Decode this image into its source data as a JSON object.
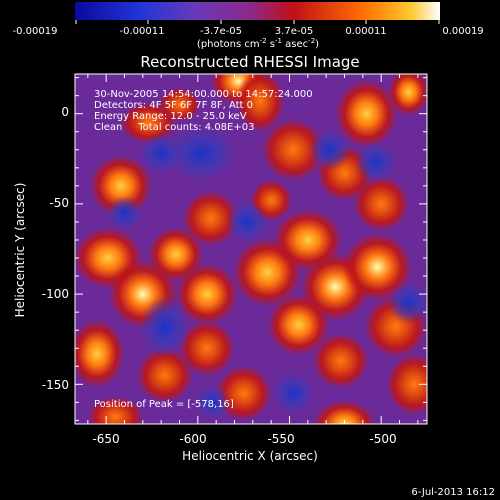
{
  "colorbar": {
    "tick_labels": [
      "-0.00019",
      "-0.00011",
      "-3.7e-05",
      "3.7e-05",
      "0.00011",
      "0.00019"
    ],
    "unit_main": "(photons cm",
    "unit_exp1": "-2",
    "unit_mid": " s",
    "unit_exp2": "-1",
    "unit_tail": " asec",
    "unit_exp3": "-2",
    "unit_close": ")"
  },
  "title": "Reconstructed RHESSI Image",
  "annotations": {
    "time_range": "30-Nov-2005 14:54:00.000 to 14:57:24.000",
    "detectors": "Detectors: 4F 5F 6F 7F 8F, Att 0",
    "energy": "Energy Range: 12.0 - 25.0 keV",
    "method": "Clean     Total counts: 4.08E+03",
    "peak": "Position of Peak = [-578,16]"
  },
  "axes": {
    "xlabel": "Heliocentric X (arcsec)",
    "ylabel": "Heliocentric Y (arcsec)",
    "x_ticks": [
      "-650",
      "-600",
      "-550",
      "-500"
    ],
    "y_ticks": [
      "0",
      "-50",
      "-100",
      "-150"
    ]
  },
  "footer_date": "6-Jul-2013 16:12",
  "colors": {
    "map_background": "#6a2a9a",
    "negative": "#1a33c8",
    "positive_low": "#c01515",
    "positive_mid": "#ff7a10",
    "positive_high": "#ffffaa"
  },
  "chart_data": {
    "type": "heatmap",
    "title": "Reconstructed RHESSI Image",
    "xlabel": "Heliocentric X (arcsec)",
    "ylabel": "Heliocentric Y (arcsec)",
    "xlim": [
      -667,
      -475
    ],
    "ylim": [
      -172,
      22
    ],
    "colorbar_range": [
      -0.00019,
      0.00019
    ],
    "peak_position": [
      -578,
      16
    ],
    "blobs": [
      {
        "x": -578,
        "y": 18,
        "sx": 8,
        "sy": 7,
        "v": 1.0
      },
      {
        "x": -566,
        "y": 7,
        "sx": 7,
        "sy": 9,
        "v": 0.6
      },
      {
        "x": -508,
        "y": 0,
        "sx": 9,
        "sy": 10,
        "v": 0.75
      },
      {
        "x": -485,
        "y": 12,
        "sx": 6,
        "sy": 7,
        "v": 0.65
      },
      {
        "x": -548,
        "y": -20,
        "sx": 9,
        "sy": 9,
        "v": 0.45
      },
      {
        "x": -520,
        "y": -33,
        "sx": 8,
        "sy": 8,
        "v": 0.5
      },
      {
        "x": -627,
        "y": -5,
        "sx": 8,
        "sy": 6,
        "v": 0.55
      },
      {
        "x": -610,
        "y": 5,
        "sx": 6,
        "sy": 5,
        "v": 0.45
      },
      {
        "x": -642,
        "y": -40,
        "sx": 9,
        "sy": 9,
        "v": 0.7
      },
      {
        "x": -593,
        "y": -58,
        "sx": 8,
        "sy": 8,
        "v": 0.5
      },
      {
        "x": -649,
        "y": -80,
        "sx": 10,
        "sy": 9,
        "v": 0.75
      },
      {
        "x": -630,
        "y": -100,
        "sx": 10,
        "sy": 10,
        "v": 0.85
      },
      {
        "x": -612,
        "y": -78,
        "sx": 8,
        "sy": 8,
        "v": 0.65
      },
      {
        "x": -595,
        "y": -100,
        "sx": 9,
        "sy": 9,
        "v": 0.7
      },
      {
        "x": -562,
        "y": -88,
        "sx": 10,
        "sy": 10,
        "v": 0.8
      },
      {
        "x": -540,
        "y": -70,
        "sx": 10,
        "sy": 9,
        "v": 0.75
      },
      {
        "x": -525,
        "y": -96,
        "sx": 10,
        "sy": 10,
        "v": 0.95
      },
      {
        "x": -502,
        "y": -85,
        "sx": 10,
        "sy": 10,
        "v": 0.95
      },
      {
        "x": -492,
        "y": -118,
        "sx": 9,
        "sy": 9,
        "v": 0.6
      },
      {
        "x": -482,
        "y": -150,
        "sx": 8,
        "sy": 9,
        "v": 0.55
      },
      {
        "x": -545,
        "y": -117,
        "sx": 9,
        "sy": 9,
        "v": 0.75
      },
      {
        "x": -522,
        "y": -137,
        "sx": 8,
        "sy": 8,
        "v": 0.55
      },
      {
        "x": -655,
        "y": -133,
        "sx": 8,
        "sy": 10,
        "v": 0.65
      },
      {
        "x": -618,
        "y": -145,
        "sx": 8,
        "sy": 8,
        "v": 0.55
      },
      {
        "x": -595,
        "y": -130,
        "sx": 8,
        "sy": 8,
        "v": 0.45
      },
      {
        "x": -575,
        "y": -155,
        "sx": 8,
        "sy": 8,
        "v": 0.5
      },
      {
        "x": -645,
        "y": -168,
        "sx": 8,
        "sy": 6,
        "v": 0.4
      },
      {
        "x": -520,
        "y": -172,
        "sx": 9,
        "sy": 7,
        "v": 0.75
      },
      {
        "x": -500,
        "y": -50,
        "sx": 8,
        "sy": 8,
        "v": 0.4
      },
      {
        "x": -560,
        "y": -48,
        "sx": 6,
        "sy": 6,
        "v": 0.3
      },
      {
        "x": -598,
        "y": -22,
        "sx": 10,
        "sy": 8,
        "v": -0.35
      },
      {
        "x": -620,
        "y": -22,
        "sx": 6,
        "sy": 6,
        "v": -0.3
      },
      {
        "x": -618,
        "y": -118,
        "sx": 7,
        "sy": 9,
        "v": -0.45
      },
      {
        "x": -640,
        "y": -55,
        "sx": 5,
        "sy": 5,
        "v": -0.2
      },
      {
        "x": -528,
        "y": -20,
        "sx": 6,
        "sy": 6,
        "v": -0.5
      },
      {
        "x": -503,
        "y": -27,
        "sx": 6,
        "sy": 6,
        "v": -0.45
      },
      {
        "x": -548,
        "y": -155,
        "sx": 6,
        "sy": 6,
        "v": -0.4
      },
      {
        "x": -592,
        "y": -160,
        "sx": 5,
        "sy": 5,
        "v": -0.3
      },
      {
        "x": -485,
        "y": -105,
        "sx": 6,
        "sy": 6,
        "v": -0.25
      },
      {
        "x": -573,
        "y": -60,
        "sx": 6,
        "sy": 6,
        "v": -0.2
      }
    ]
  }
}
